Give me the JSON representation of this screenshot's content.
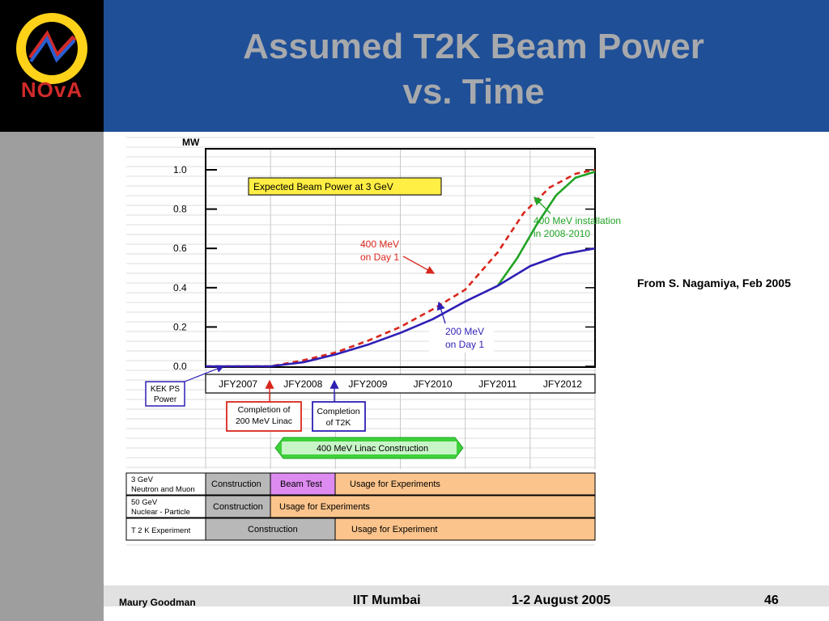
{
  "slide": {
    "title_line1": "Assumed T2K Beam Power",
    "title_line2": "vs. Time",
    "logo_text": "NOvA",
    "source_note": "From S. Nagamiya, Feb 2005"
  },
  "footer": {
    "author": "Maury Goodman",
    "venue": "IIT Mumbai",
    "date": "1-2 August 2005",
    "page": "46"
  },
  "colors": {
    "header_bg": "#1f4f97",
    "title": "#a7a9ac",
    "red": "#d9261c",
    "green": "#21a325",
    "blue": "#2e1fb5",
    "orange": "#fbc48c",
    "violet": "#dd8bf0",
    "gray": "#b8b8b8"
  },
  "chart_data": {
    "type": "line",
    "ylabel": "MW",
    "ylim": [
      0,
      1.0
    ],
    "y_ticks": [
      "1.0",
      "0.8",
      "0.6",
      "0.4",
      "0.2",
      "0.0"
    ],
    "y_tick_values": [
      1.0,
      0.8,
      0.6,
      0.4,
      0.2,
      0.0
    ],
    "x_range": [
      2007,
      2013
    ],
    "categories": [
      "JFY2007",
      "JFY2008",
      "JFY2009",
      "JFY2010",
      "JFY2011",
      "JFY2012"
    ],
    "series": [
      {
        "key": "red",
        "style": "dashed",
        "x": [
          2007,
          2008,
          2008.5,
          2009,
          2009.5,
          2010,
          2010.5,
          2011,
          2011.5,
          2011.9,
          2012.3,
          2012.7,
          2013
        ],
        "y": [
          0,
          0,
          0.03,
          0.07,
          0.13,
          0.2,
          0.29,
          0.39,
          0.58,
          0.78,
          0.91,
          0.98,
          1.0
        ]
      },
      {
        "key": "green",
        "style": "solid",
        "x": [
          2011.5,
          2011.8,
          2012.1,
          2012.4,
          2012.7,
          2013
        ],
        "y": [
          0.41,
          0.55,
          0.72,
          0.87,
          0.96,
          0.99
        ]
      },
      {
        "key": "blue",
        "style": "solid",
        "x": [
          2007,
          2008,
          2008.5,
          2009,
          2009.5,
          2010,
          2010.5,
          2011,
          2011.5,
          2012,
          2012.5,
          2013
        ],
        "y": [
          0,
          0,
          0.02,
          0.06,
          0.11,
          0.17,
          0.24,
          0.33,
          0.41,
          0.51,
          0.57,
          0.6
        ]
      }
    ],
    "annotations": {
      "expected_box": "Expected Beam Power at 3 GeV",
      "red_label_1": "400 MeV",
      "red_label_2": "on Day 1",
      "green_label_1": "400 MeV installation",
      "green_label_2": "in 2008-2010",
      "blue_label_1": "200 MeV",
      "blue_label_2": "on Day 1",
      "kek_1": "KEK PS",
      "kek_2": "Power",
      "linac_200_1": "Completion of",
      "linac_200_2": "200 MeV Linac",
      "t2k_done_1": "Completion",
      "t2k_done_2": "of T2K",
      "linac_400": "400 MeV Linac Construction"
    },
    "schedule": [
      {
        "name_1": "3 GeV",
        "name_2": "Neutron and Muon",
        "cells": [
          {
            "label": "Construction",
            "color": "gray"
          },
          {
            "label": "Beam Test",
            "color": "violet"
          },
          {
            "label": "Usage for Experiments",
            "color": "orange"
          }
        ]
      },
      {
        "name_1": "50 GeV",
        "name_2": "Nuclear - Particle",
        "cells": [
          {
            "label": "Construction",
            "color": "gray"
          },
          {
            "label": "Usage for Experiments",
            "color": "orange"
          }
        ]
      },
      {
        "name_1": "T 2 K Experiment",
        "name_2": "",
        "cells": [
          {
            "label": "Construction",
            "color": "gray"
          },
          {
            "label": "Usage for Experiment",
            "color": "orange"
          }
        ]
      }
    ]
  }
}
